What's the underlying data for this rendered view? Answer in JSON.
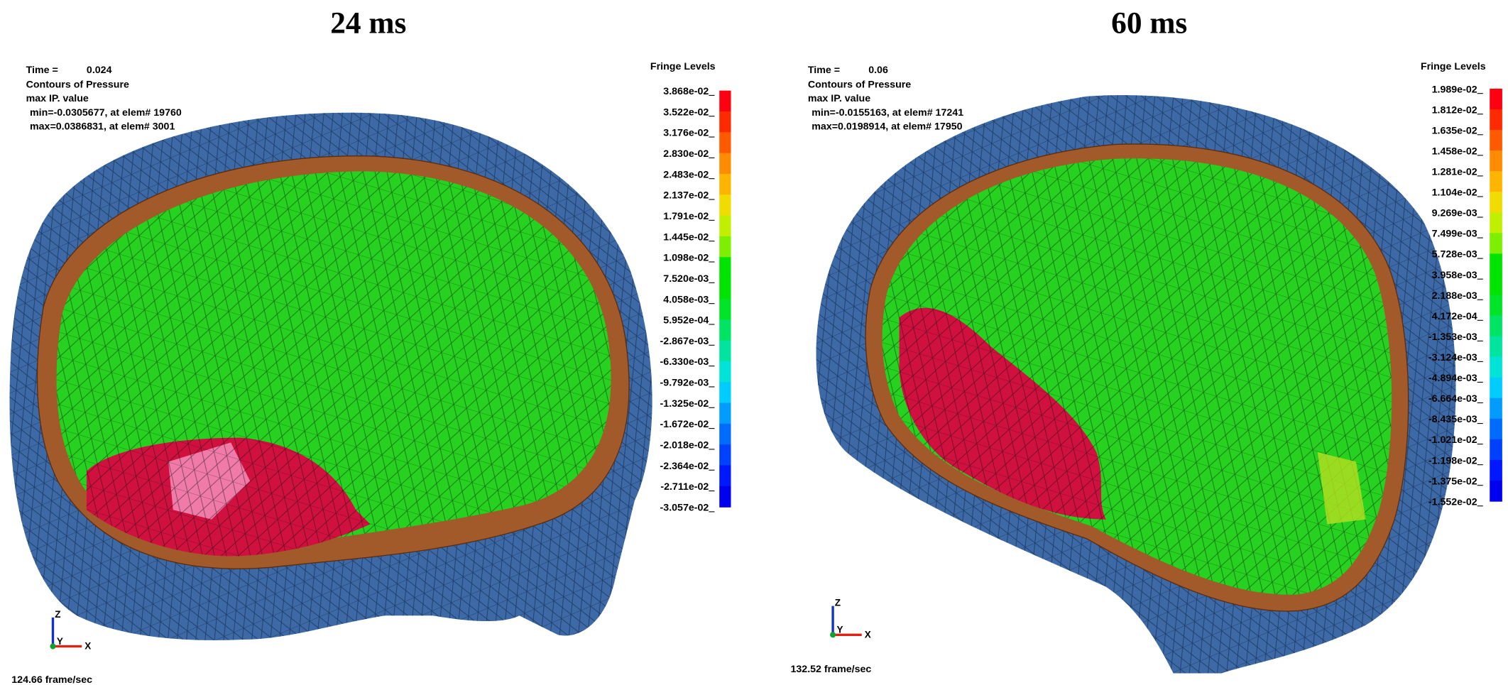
{
  "panels": [
    {
      "title": "24 ms",
      "time_label": "Time =",
      "time": "0.024",
      "info": [
        "Contours of Pressure",
        "max IP. value",
        "min=-0.0305677, at elem# 19760",
        "max=0.0386831, at elem# 3001"
      ],
      "fringe_title": "Fringe Levels",
      "fringe_levels": [
        "3.868e-02",
        "3.522e-02",
        "3.176e-02",
        "2.830e-02",
        "2.483e-02",
        "2.137e-02",
        "1.791e-02",
        "1.445e-02",
        "1.098e-02",
        "7.520e-03",
        "4.058e-03",
        "5.952e-04",
        "-2.867e-03",
        "-6.330e-03",
        "-9.792e-03",
        "-1.325e-02",
        "-1.672e-02",
        "-2.018e-02",
        "-2.364e-02",
        "-2.711e-02",
        "-3.057e-02"
      ],
      "frame_rate": "124.66 frame/sec",
      "axes": [
        "Z",
        "Y",
        "X"
      ]
    },
    {
      "title": "60 ms",
      "time_label": "Time =",
      "time": "0.06",
      "info": [
        "Contours of Pressure",
        "max IP. value",
        "min=-0.0155163, at elem# 17241",
        "max=0.0198914, at elem# 17950"
      ],
      "fringe_title": "Fringe Levels",
      "fringe_levels": [
        "1.989e-02",
        "1.812e-02",
        "1.635e-02",
        "1.458e-02",
        "1.281e-02",
        "1.104e-02",
        "9.269e-03",
        "7.499e-03",
        "5.728e-03",
        "3.958e-03",
        "2.188e-03",
        "4.172e-04",
        "-1.353e-03",
        "-3.124e-03",
        "-4.894e-03",
        "-6.664e-03",
        "-8.435e-03",
        "-1.021e-02",
        "-1.198e-02",
        "-1.375e-02",
        "-1.552e-02"
      ],
      "frame_rate": "132.52 frame/sec",
      "axes": [
        "Z",
        "Y",
        "X"
      ]
    }
  ]
}
